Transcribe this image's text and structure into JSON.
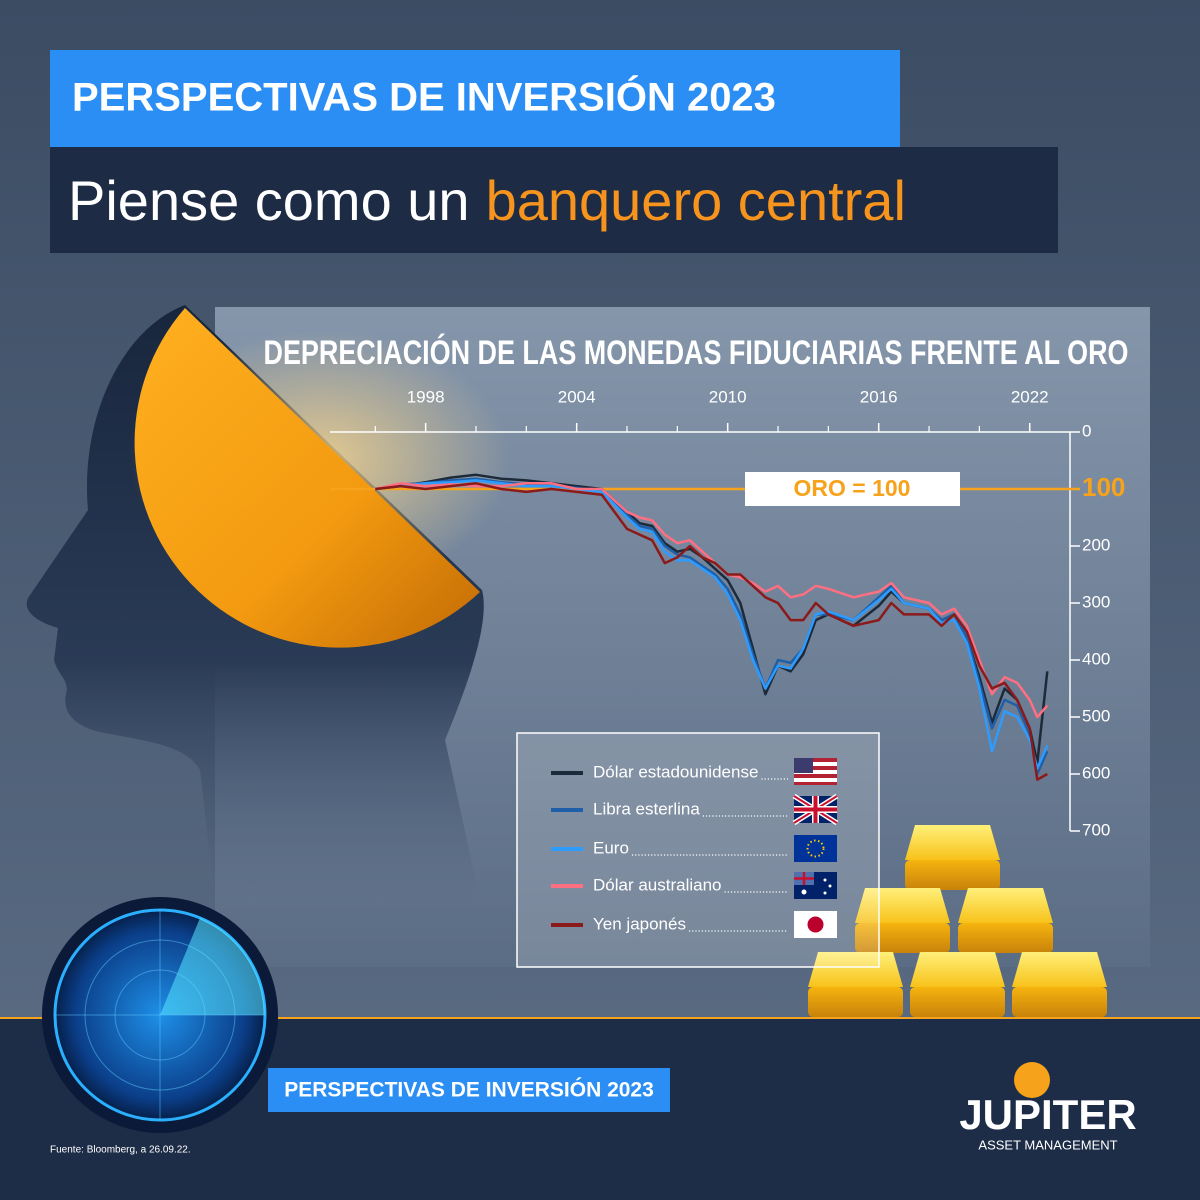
{
  "header": {
    "title": "PERSPECTIVAS DE INVERSIÓN 2023",
    "subtitle": "Piense como un",
    "subtitle_highlight": "banquero central"
  },
  "chart_data": {
    "type": "line",
    "title": "DEPRECIACIÓN DE LAS MONEDAS FIDUCIARIAS FRENTE AL ORO",
    "x": [
      1996,
      1997,
      1998,
      1999,
      2000,
      2001,
      2002,
      2003,
      2004,
      2005,
      2006,
      2006.5,
      2007,
      2007.5,
      2008,
      2008.5,
      2009,
      2009.5,
      2010,
      2010.5,
      2011,
      2011.5,
      2012,
      2012.5,
      2013,
      2013.5,
      2014,
      2015,
      2016,
      2016.5,
      2017,
      2018,
      2018.5,
      2019,
      2019.5,
      2020,
      2020.5,
      2021,
      2021.5,
      2022,
      2022.3,
      2022.7
    ],
    "series": [
      {
        "name": "Dólar estadounidense",
        "color": "#1c2a3a",
        "values": [
          100,
          95,
          88,
          80,
          75,
          82,
          85,
          90,
          95,
          100,
          140,
          160,
          165,
          195,
          210,
          205,
          220,
          240,
          260,
          300,
          380,
          460,
          410,
          420,
          390,
          330,
          320,
          340,
          305,
          280,
          300,
          310,
          330,
          320,
          360,
          430,
          510,
          450,
          470,
          520,
          580,
          420
        ]
      },
      {
        "name": "Libra esterlina",
        "color": "#1f5fa8",
        "values": [
          100,
          92,
          90,
          85,
          82,
          88,
          92,
          95,
          98,
          105,
          145,
          165,
          170,
          200,
          215,
          220,
          235,
          250,
          275,
          320,
          390,
          450,
          400,
          405,
          380,
          320,
          320,
          330,
          290,
          270,
          300,
          310,
          330,
          320,
          360,
          440,
          520,
          470,
          480,
          530,
          600,
          560
        ]
      },
      {
        "name": "Euro",
        "color": "#2e9bff",
        "values": [
          100,
          95,
          90,
          88,
          85,
          90,
          95,
          95,
          100,
          105,
          150,
          170,
          175,
          210,
          225,
          225,
          240,
          255,
          285,
          330,
          400,
          450,
          410,
          415,
          380,
          320,
          315,
          330,
          295,
          275,
          300,
          310,
          335,
          330,
          370,
          450,
          560,
          490,
          500,
          540,
          590,
          550
        ]
      },
      {
        "name": "Dólar australiano",
        "color": "#ff6f82",
        "values": [
          100,
          90,
          95,
          92,
          95,
          95,
          90,
          90,
          100,
          100,
          140,
          150,
          155,
          180,
          195,
          190,
          210,
          230,
          250,
          255,
          265,
          280,
          270,
          290,
          285,
          270,
          275,
          290,
          280,
          265,
          290,
          300,
          320,
          310,
          340,
          400,
          460,
          430,
          440,
          470,
          500,
          480
        ]
      },
      {
        "name": "Yen japonés",
        "color": "#8b1a1a",
        "values": [
          100,
          95,
          100,
          95,
          90,
          100,
          105,
          100,
          105,
          110,
          170,
          180,
          190,
          230,
          220,
          200,
          220,
          230,
          250,
          250,
          270,
          290,
          300,
          330,
          330,
          300,
          320,
          340,
          330,
          300,
          320,
          320,
          340,
          320,
          350,
          410,
          450,
          440,
          470,
          520,
          610,
          600
        ]
      }
    ],
    "xlim": [
      1994.2,
      2023.6
    ],
    "xticks": [
      1998,
      2004,
      2010,
      2016,
      2022
    ],
    "xminorticks": [
      1996,
      2000,
      2002,
      2006,
      2008,
      2012,
      2014,
      2018,
      2020
    ],
    "ylim": [
      0,
      700
    ],
    "yticks": [
      0,
      100,
      200,
      300,
      400,
      500,
      600,
      700
    ],
    "y_inverted": true,
    "ref_line": {
      "value": 100,
      "label": "ORO = 100",
      "color": "#f7a21b"
    }
  },
  "footer": {
    "badge": "PERSPECTIVAS DE INVERSIÓN 2023",
    "source": "Fuente: Bloomberg, a 26.09.22.",
    "logo": "JUPITER",
    "logo_sub": "ASSET MANAGEMENT"
  }
}
